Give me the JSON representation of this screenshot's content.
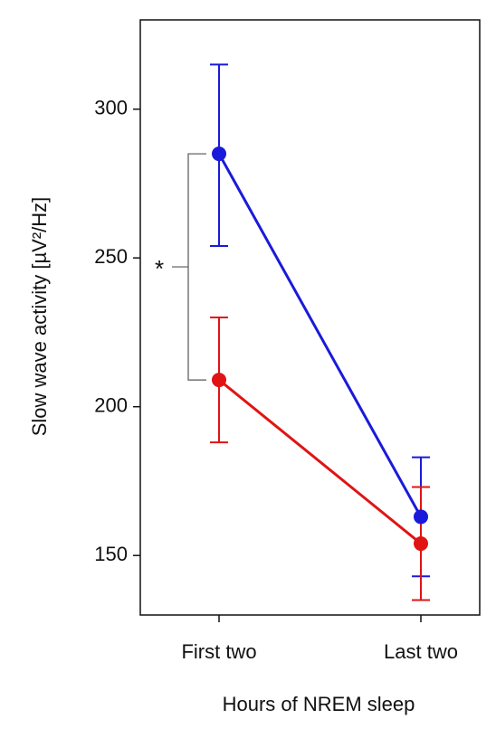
{
  "chart_data": {
    "type": "line",
    "categories": [
      "First two",
      "Last two"
    ],
    "series": [
      {
        "color": "#1a1adb",
        "values": [
          285,
          163
        ],
        "lower": [
          254,
          143
        ],
        "upper": [
          315,
          183
        ]
      },
      {
        "color": "#e01414",
        "values": [
          209,
          154
        ],
        "lower": [
          188,
          135
        ],
        "upper": [
          230,
          173
        ]
      }
    ],
    "ylabel": "Slow wave activity [µV²/Hz]",
    "xlabel": "Hours of NREM sleep",
    "annotation": "*",
    "ylim": [
      130,
      330
    ],
    "yticks": [
      150,
      200,
      250,
      300
    ]
  }
}
